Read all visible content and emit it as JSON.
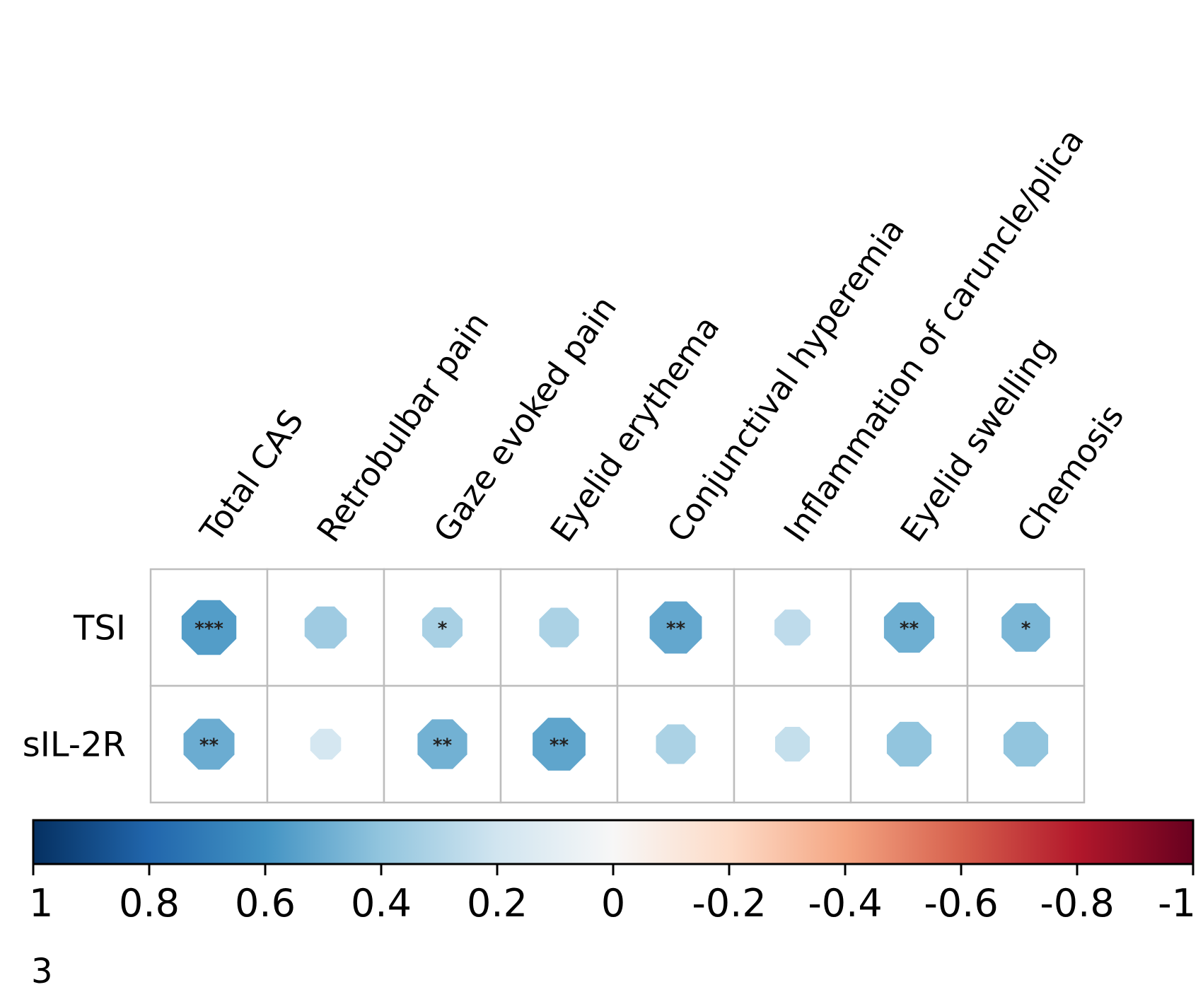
{
  "chart_data": {
    "type": "heatmap",
    "subtype": "correlation-matrix",
    "panel_label": "3",
    "columns": [
      "Total CAS",
      "Retrobulbar pain",
      "Gaze evoked pain",
      "Eyelid erythema",
      "Conjunctival hyperemia",
      "Inflammation of caruncle/plica",
      "Eyelid swelling",
      "Chemosis"
    ],
    "rows": [
      "TSI",
      "sIL-2R"
    ],
    "values": [
      [
        0.56,
        0.36,
        0.33,
        0.32,
        0.52,
        0.26,
        0.49,
        0.46
      ],
      [
        0.5,
        0.18,
        0.48,
        0.53,
        0.32,
        0.24,
        0.4,
        0.4
      ]
    ],
    "significance": [
      [
        "***",
        "",
        "*",
        "",
        "**",
        "",
        "**",
        "*"
      ],
      [
        "**",
        "",
        "**",
        "**",
        "",
        "",
        "",
        ""
      ]
    ],
    "colorbar": {
      "range": [
        1,
        -1
      ],
      "ticks": [
        "1",
        "0.8",
        "0.6",
        "0.4",
        "0.2",
        "0",
        "-0.2",
        "-0.4",
        "-0.6",
        "-0.8",
        "-1"
      ],
      "colors": {
        "pos_strong": "#053061",
        "pos_mid": "#2166ac",
        "pos_light": "#4393c3",
        "pos_pale": "#92c5de",
        "pos_faint": "#d1e5f0",
        "zero": "#f7f7f7",
        "neg_faint": "#fddbc7",
        "neg_pale": "#f4a582",
        "neg_light": "#d6604d",
        "neg_mid": "#b2182b",
        "neg_strong": "#67001f"
      }
    }
  }
}
